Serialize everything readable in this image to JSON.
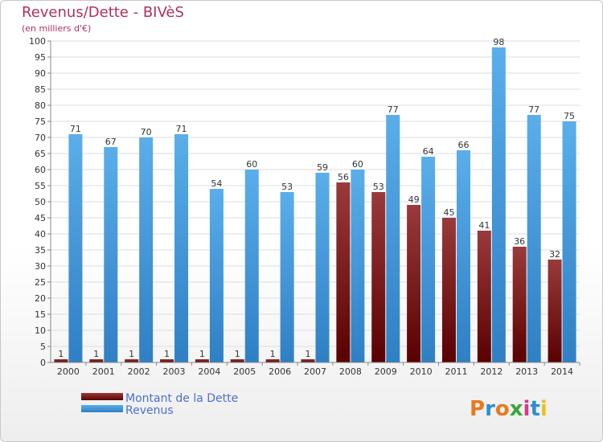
{
  "chart_data": {
    "type": "bar",
    "title": "Revenus/Dette - BIVèS",
    "subtitle": "(en milliers d'€)",
    "categories": [
      "2000",
      "2001",
      "2002",
      "2003",
      "2004",
      "2005",
      "2006",
      "2007",
      "2008",
      "2009",
      "2010",
      "2011",
      "2012",
      "2013",
      "2014"
    ],
    "series": [
      {
        "name": "Montant de la Dette",
        "color": "#7a1515",
        "values": [
          1,
          1,
          1,
          1,
          1,
          1,
          1,
          1,
          56,
          53,
          49,
          45,
          41,
          36,
          32
        ]
      },
      {
        "name": "Revenus",
        "color": "#4a9fe0",
        "values": [
          71,
          67,
          70,
          71,
          54,
          60,
          53,
          59,
          60,
          77,
          64,
          66,
          98,
          77,
          75
        ]
      }
    ],
    "ylim": [
      0,
      100
    ],
    "yticks": [
      0,
      5,
      10,
      15,
      20,
      25,
      30,
      35,
      40,
      45,
      50,
      55,
      60,
      65,
      70,
      75,
      80,
      85,
      90,
      95,
      100
    ],
    "grid": true,
    "legend": "bottom-left"
  },
  "logo": {
    "text": "Proxiti"
  }
}
